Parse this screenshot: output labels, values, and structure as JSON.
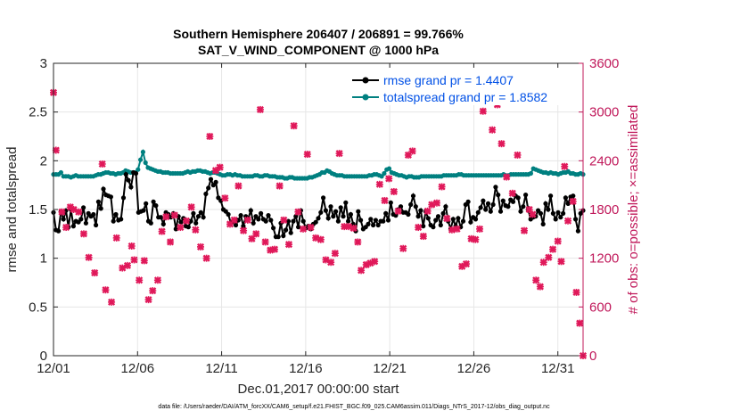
{
  "chart_data": {
    "type": "line",
    "title_line1": "Southern Hemisphere 206407 / 206891 = 99.766%",
    "title_line2": "SAT_V_WIND_COMPONENT @ 1000 hPa",
    "xlabel": "Dec.01,2017 00:00:00 start",
    "ylabel_left": "rmse and totalspread",
    "ylabel_right": "# of obs: o=possible; ×=assimilated",
    "footnote": "data file: /Users/raeder/DAI/ATM_forcXX/CAM6_setup/f.e21.FHIST_BGC.f09_025.CAM6assim.011/Diags_NTrS_2017-12/obs_diag_output.nc",
    "xlim": [
      0,
      31.5
    ],
    "ylim_left": [
      0,
      3
    ],
    "ylim_right": [
      0,
      3600
    ],
    "x_ticks": [
      0,
      5,
      10,
      15,
      20,
      25,
      30
    ],
    "x_tick_labels": [
      "12/01",
      "12/06",
      "12/11",
      "12/16",
      "12/21",
      "12/26",
      "12/31"
    ],
    "y_left_ticks": [
      0,
      0.5,
      1,
      1.5,
      2,
      2.5,
      3
    ],
    "y_left_tick_labels": [
      "0",
      "0.5",
      "1",
      "1.5",
      "2",
      "2.5",
      "3"
    ],
    "y_right_ticks": [
      0,
      600,
      1200,
      1800,
      2400,
      3000,
      3600
    ],
    "y_right_tick_labels": [
      "0",
      "600",
      "1200",
      "1800",
      "2400",
      "3000",
      "3600"
    ],
    "colors": {
      "rmse": "#000000",
      "spread": "#008080",
      "obs": "#e0195a",
      "left_axis": "#000000",
      "right_axis": "#c0185a"
    },
    "legend": [
      {
        "name": "rmse grand pr = 1.4407",
        "key": "rmse"
      },
      {
        "name": "totalspread grand pr = 1.8582",
        "key": "spread"
      }
    ],
    "series": [
      {
        "name": "rmse",
        "axis": "left",
        "values": [
          1.47,
          1.29,
          1.28,
          1.48,
          1.4,
          1.49,
          1.32,
          1.5,
          1.33,
          1.38,
          1.37,
          1.4,
          1.52,
          1.36,
          1.46,
          1.43,
          1.45,
          1.34,
          1.58,
          1.51,
          1.71,
          1.65,
          1.64,
          1.63,
          1.38,
          1.45,
          1.39,
          1.4,
          1.62,
          1.86,
          1.8,
          1.73,
          1.88,
          1.87,
          1.47,
          1.48,
          1.49,
          1.56,
          1.38,
          1.36,
          1.58,
          1.54,
          1.42,
          1.42,
          1.35,
          1.47,
          1.45,
          1.42,
          1.46,
          1.3,
          1.43,
          1.37,
          1.41,
          1.33,
          1.32,
          1.38,
          1.46,
          1.36,
          1.43,
          1.47,
          1.42,
          1.66,
          1.72,
          1.81,
          1.75,
          1.78,
          1.62,
          1.59,
          1.5,
          1.48,
          1.45,
          1.36,
          1.38,
          1.34,
          1.39,
          1.44,
          1.33,
          1.43,
          1.41,
          1.49,
          1.36,
          1.43,
          1.4,
          1.46,
          1.4,
          1.38,
          1.44,
          1.39,
          1.31,
          1.22,
          1.22,
          1.36,
          1.23,
          1.29,
          1.38,
          1.26,
          1.38,
          1.43,
          1.32,
          1.49,
          1.38,
          1.31,
          1.33,
          1.3,
          1.35,
          1.37,
          1.41,
          1.47,
          1.62,
          1.49,
          1.41,
          1.53,
          1.43,
          1.48,
          1.38,
          1.52,
          1.43,
          1.57,
          1.38,
          1.45,
          1.35,
          1.28,
          1.48,
          1.39,
          1.3,
          1.32,
          1.35,
          1.4,
          1.34,
          1.39,
          1.34,
          1.38,
          1.38,
          1.46,
          1.39,
          1.57,
          1.45,
          1.44,
          1.5,
          1.53,
          1.47,
          1.47,
          1.45,
          1.55,
          1.64,
          1.53,
          1.43,
          1.49,
          1.33,
          1.48,
          1.41,
          1.34,
          1.32,
          1.39,
          1.43,
          1.34,
          1.46,
          1.53,
          1.38,
          1.3,
          1.4,
          1.33,
          1.41,
          1.32,
          1.38,
          1.55,
          1.58,
          1.37,
          1.42,
          1.4,
          1.47,
          1.52,
          1.59,
          1.5,
          1.56,
          1.48,
          1.55,
          1.73,
          1.65,
          1.48,
          1.59,
          1.54,
          1.53,
          1.6,
          1.58,
          1.64,
          1.62,
          1.48,
          1.53,
          1.65,
          1.5,
          1.4,
          1.42,
          1.43,
          1.49,
          1.46,
          1.35,
          1.56,
          1.5,
          1.64,
          1.46,
          1.4,
          1.47,
          1.42,
          1.46,
          1.62,
          1.56,
          1.63,
          1.64,
          1.4,
          1.28,
          1.46,
          1.49
        ]
      },
      {
        "name": "totalspread",
        "axis": "left",
        "values": [
          1.86,
          1.86,
          1.86,
          1.88,
          1.84,
          1.84,
          1.84,
          1.83,
          1.84,
          1.85,
          1.84,
          1.84,
          1.84,
          1.84,
          1.84,
          1.84,
          1.84,
          1.85,
          1.86,
          1.86,
          1.87,
          1.88,
          1.88,
          1.87,
          1.87,
          1.86,
          1.87,
          1.87,
          1.88,
          1.9,
          1.89,
          1.88,
          1.88,
          1.88,
          1.91,
          2.01,
          2.09,
          1.98,
          1.93,
          1.92,
          1.91,
          1.9,
          1.89,
          1.89,
          1.88,
          1.88,
          1.88,
          1.87,
          1.87,
          1.87,
          1.87,
          1.87,
          1.87,
          1.88,
          1.89,
          1.88,
          1.89,
          1.89,
          1.9,
          1.9,
          1.89,
          1.89,
          1.88,
          1.87,
          1.88,
          1.88,
          1.87,
          1.86,
          1.85,
          1.85,
          1.86,
          1.86,
          1.85,
          1.86,
          1.85,
          1.85,
          1.84,
          1.84,
          1.84,
          1.84,
          1.84,
          1.85,
          1.85,
          1.84,
          1.84,
          1.85,
          1.85,
          1.84,
          1.84,
          1.84,
          1.83,
          1.83,
          1.83,
          1.82,
          1.82,
          1.83,
          1.83,
          1.82,
          1.82,
          1.82,
          1.82,
          1.82,
          1.82,
          1.83,
          1.83,
          1.84,
          1.85,
          1.86,
          1.88,
          1.88,
          1.9,
          1.89,
          1.87,
          1.86,
          1.85,
          1.85,
          1.85,
          1.84,
          1.84,
          1.84,
          1.84,
          1.84,
          1.84,
          1.84,
          1.84,
          1.84,
          1.84,
          1.85,
          1.85,
          1.86,
          1.86,
          1.85,
          1.84,
          1.87,
          1.91,
          1.92,
          1.88,
          1.87,
          1.86,
          1.85,
          1.85,
          1.84,
          1.83,
          1.84,
          1.84,
          1.83,
          1.83,
          1.83,
          1.84,
          1.84,
          1.84,
          1.84,
          1.84,
          1.84,
          1.84,
          1.84,
          1.84,
          1.85,
          1.85,
          1.85,
          1.85,
          1.85,
          1.85,
          1.86,
          1.86,
          1.85,
          1.85,
          1.85,
          1.85,
          1.85,
          1.85,
          1.85,
          1.85,
          1.85,
          1.85,
          1.85,
          1.85,
          1.85,
          1.85,
          1.85,
          1.85,
          1.86,
          1.85,
          1.85,
          1.86,
          1.86,
          1.86,
          1.86,
          1.86,
          1.86,
          1.86,
          1.86,
          1.87,
          1.92,
          1.91,
          1.9,
          1.89,
          1.88,
          1.88,
          1.87,
          1.88,
          1.87,
          1.87,
          1.86,
          1.87,
          1.88,
          1.88,
          1.89,
          1.87,
          1.87,
          1.86,
          1.86,
          1.87,
          1.86
        ]
      },
      {
        "name": "# assimilated",
        "axis": "right",
        "points": [
          [
            0,
            3240
          ],
          [
            0.15,
            2530
          ],
          [
            0.5,
            1770
          ],
          [
            0.75,
            1580
          ],
          [
            1,
            1830
          ],
          [
            1.2,
            1800
          ],
          [
            1.5,
            1770
          ],
          [
            1.8,
            1500
          ],
          [
            2.1,
            1210
          ],
          [
            2.45,
            1020
          ],
          [
            2.9,
            2360
          ],
          [
            3.1,
            810
          ],
          [
            3.45,
            660
          ],
          [
            3.75,
            1450
          ],
          [
            4.1,
            1080
          ],
          [
            4.4,
            1110
          ],
          [
            4.65,
            1350
          ],
          [
            4.8,
            1180
          ],
          [
            5.1,
            930
          ],
          [
            5.4,
            1170
          ],
          [
            5.65,
            690
          ],
          [
            5.9,
            800
          ],
          [
            6.2,
            930
          ],
          [
            6.45,
            1530
          ],
          [
            6.7,
            1710
          ],
          [
            6.95,
            1400
          ],
          [
            7.2,
            1730
          ],
          [
            7.55,
            1580
          ],
          [
            7.9,
            1660
          ],
          [
            8.2,
            1830
          ],
          [
            8.45,
            1550
          ],
          [
            8.75,
            1340
          ],
          [
            9.1,
            1200
          ],
          [
            9.3,
            2700
          ],
          [
            9.65,
            2280
          ],
          [
            9.9,
            2320
          ],
          [
            10.2,
            1940
          ],
          [
            10.5,
            1620
          ],
          [
            10.75,
            1670
          ],
          [
            11,
            2090
          ],
          [
            11.3,
            1540
          ],
          [
            11.55,
            1670
          ],
          [
            11.8,
            1440
          ],
          [
            12.05,
            1500
          ],
          [
            12.3,
            3030
          ],
          [
            12.6,
            1400
          ],
          [
            12.9,
            1300
          ],
          [
            13.15,
            1310
          ],
          [
            13.45,
            2090
          ],
          [
            13.7,
            1670
          ],
          [
            14.0,
            1370
          ],
          [
            14.3,
            2830
          ],
          [
            14.55,
            1770
          ],
          [
            14.85,
            1560
          ],
          [
            15.1,
            2480
          ],
          [
            15.3,
            1580
          ],
          [
            15.6,
            1450
          ],
          [
            15.9,
            1430
          ],
          [
            16.2,
            1180
          ],
          [
            16.5,
            1150
          ],
          [
            16.75,
            1260
          ],
          [
            17.0,
            2490
          ],
          [
            17.3,
            1590
          ],
          [
            17.55,
            1590
          ],
          [
            17.85,
            1570
          ],
          [
            18.1,
            1400
          ],
          [
            18.3,
            1050
          ],
          [
            18.6,
            1120
          ],
          [
            18.85,
            1140
          ],
          [
            19.1,
            1160
          ],
          [
            19.4,
            2110
          ],
          [
            19.7,
            1910
          ],
          [
            19.95,
            2180
          ],
          [
            20.25,
            2020
          ],
          [
            20.5,
            1780
          ],
          [
            20.8,
            1320
          ],
          [
            21.1,
            2470
          ],
          [
            21.35,
            2520
          ],
          [
            21.7,
            1580
          ],
          [
            22.0,
            1470
          ],
          [
            22.25,
            1780
          ],
          [
            22.5,
            1860
          ],
          [
            22.8,
            1880
          ],
          [
            23.1,
            2080
          ],
          [
            23.4,
            1690
          ],
          [
            23.7,
            1550
          ],
          [
            24.0,
            1560
          ],
          [
            24.3,
            1100
          ],
          [
            24.55,
            1130
          ],
          [
            24.85,
            1440
          ],
          [
            25.1,
            1430
          ],
          [
            25.35,
            1560
          ],
          [
            25.55,
            3010
          ],
          [
            25.85,
            3200
          ],
          [
            26.1,
            2780
          ],
          [
            26.4,
            3090
          ],
          [
            26.65,
            2610
          ],
          [
            26.95,
            2200
          ],
          [
            27.3,
            2000
          ],
          [
            27.6,
            2470
          ],
          [
            28.0,
            1540
          ],
          [
            28.3,
            1800
          ],
          [
            28.5,
            1740
          ],
          [
            28.7,
            930
          ],
          [
            28.95,
            850
          ],
          [
            29.15,
            1150
          ],
          [
            29.45,
            1210
          ],
          [
            29.7,
            1310
          ],
          [
            30.0,
            1410
          ],
          [
            30.2,
            1160
          ],
          [
            30.4,
            2330
          ],
          [
            30.6,
            1660
          ],
          [
            30.9,
            1900
          ],
          [
            31.1,
            780
          ],
          [
            31.3,
            400
          ],
          [
            31.5,
            0
          ]
        ]
      }
    ]
  }
}
